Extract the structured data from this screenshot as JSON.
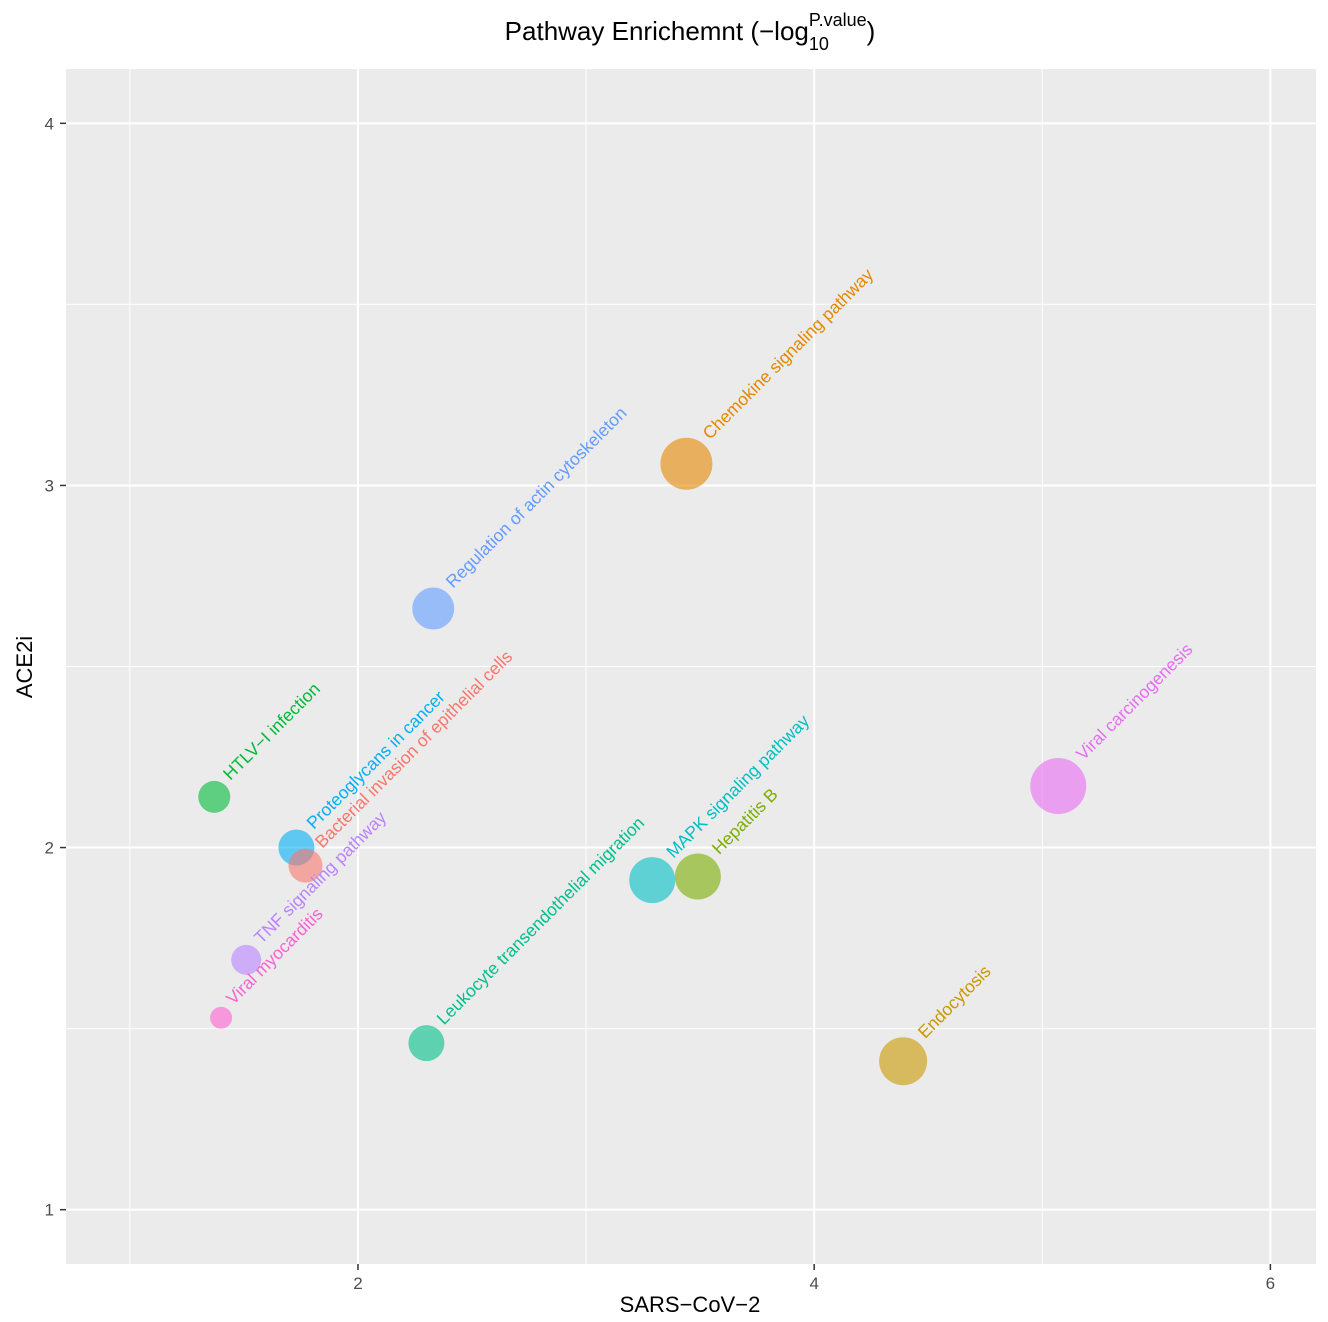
{
  "chart_data": {
    "type": "scatter",
    "title": {
      "prefix": "Pathway Enrichemnt (−log",
      "subscript": "10",
      "superscript": "P.value",
      "suffix": ")"
    },
    "xlabel": "SARS−CoV−2",
    "ylabel": "ACE2i",
    "xlim": [
      0.72,
      6.2
    ],
    "ylim": [
      0.85,
      4.15
    ],
    "xticks": [
      2,
      4,
      6
    ],
    "yticks": [
      1,
      2,
      3,
      4
    ],
    "grid": true,
    "legend": "none",
    "points": [
      {
        "label": "Chemokine signaling pathway",
        "x": 3.44,
        "y": 3.06,
        "size": 10,
        "color": "#E58700"
      },
      {
        "label": "Regulation of actin cytoskeleton",
        "x": 2.33,
        "y": 2.66,
        "size": 7.5,
        "color": "#619CFF"
      },
      {
        "label": "HTLV−I infection",
        "x": 1.37,
        "y": 2.14,
        "size": 5,
        "color": "#00BA38"
      },
      {
        "label": "Proteoglycans in cancer",
        "x": 1.73,
        "y": 2.0,
        "size": 6,
        "color": "#00B0F6"
      },
      {
        "label": "Bacterial invasion of epithelial cells",
        "x": 1.77,
        "y": 1.95,
        "size": 5.5,
        "color": "#F8766D"
      },
      {
        "label": "TNF signaling pathway",
        "x": 1.51,
        "y": 1.69,
        "size": 4.5,
        "color": "#B983FF"
      },
      {
        "label": "Viral myocarditis",
        "x": 1.4,
        "y": 1.53,
        "size": 2.5,
        "color": "#FD61D1"
      },
      {
        "label": "Leukocyte transendothelial migration",
        "x": 2.3,
        "y": 1.46,
        "size": 6,
        "color": "#00C08B"
      },
      {
        "label": "MAPK signaling pathway",
        "x": 3.29,
        "y": 1.91,
        "size": 8.5,
        "color": "#00BFC4"
      },
      {
        "label": "Hepatitis B",
        "x": 3.49,
        "y": 1.92,
        "size": 8.5,
        "color": "#7CAE00"
      },
      {
        "label": "Endocytosis",
        "x": 4.39,
        "y": 1.41,
        "size": 9,
        "color": "#C99800"
      },
      {
        "label": "Viral carcinogenesis",
        "x": 5.07,
        "y": 2.17,
        "size": 11,
        "color": "#E76BF3"
      }
    ]
  }
}
